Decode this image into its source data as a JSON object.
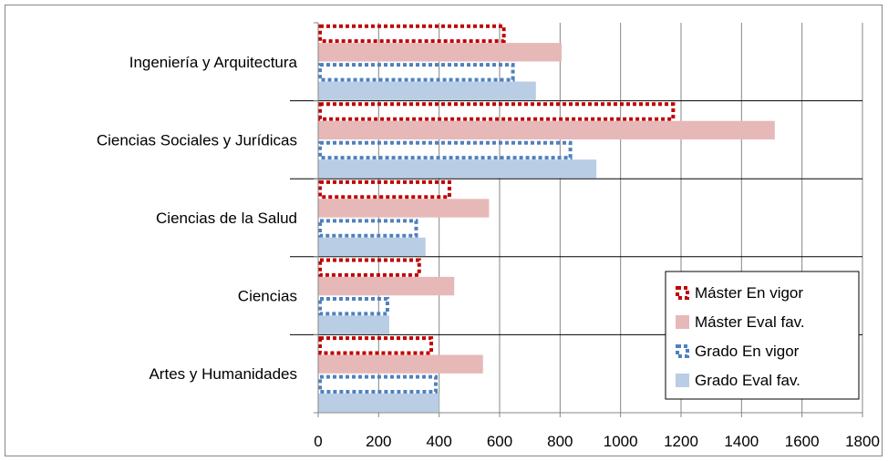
{
  "chart_data": {
    "type": "bar",
    "orientation": "horizontal",
    "categories": [
      "Artes y Humanidades",
      "Ciencias",
      "Ciencias de la Salud",
      "Ciencias Sociales y Jurídicas",
      "Ingeniería y Arquitectura"
    ],
    "series": [
      {
        "name": "Máster En vigor",
        "values": [
          380,
          340,
          440,
          1180,
          620
        ],
        "color": "#c00000",
        "style": "dotted-outline"
      },
      {
        "name": "Máster Eval fav.",
        "values": [
          545,
          450,
          565,
          1510,
          805
        ],
        "color": "#e6b9b8",
        "style": "filled"
      },
      {
        "name": "Grado En vigor",
        "values": [
          395,
          235,
          330,
          840,
          650
        ],
        "color": "#4f81bd",
        "style": "dotted-outline"
      },
      {
        "name": "Grado Eval fav.",
        "values": [
          400,
          235,
          355,
          920,
          720
        ],
        "color": "#b9cde5",
        "style": "filled"
      }
    ],
    "xticks": [
      "0",
      "200",
      "400",
      "600",
      "800",
      "1000",
      "1200",
      "1400",
      "1600",
      "1800"
    ],
    "xlim": [
      0,
      1800
    ],
    "grid": true,
    "legend": "bottom-right",
    "title": "",
    "xlabel": "",
    "ylabel": ""
  }
}
